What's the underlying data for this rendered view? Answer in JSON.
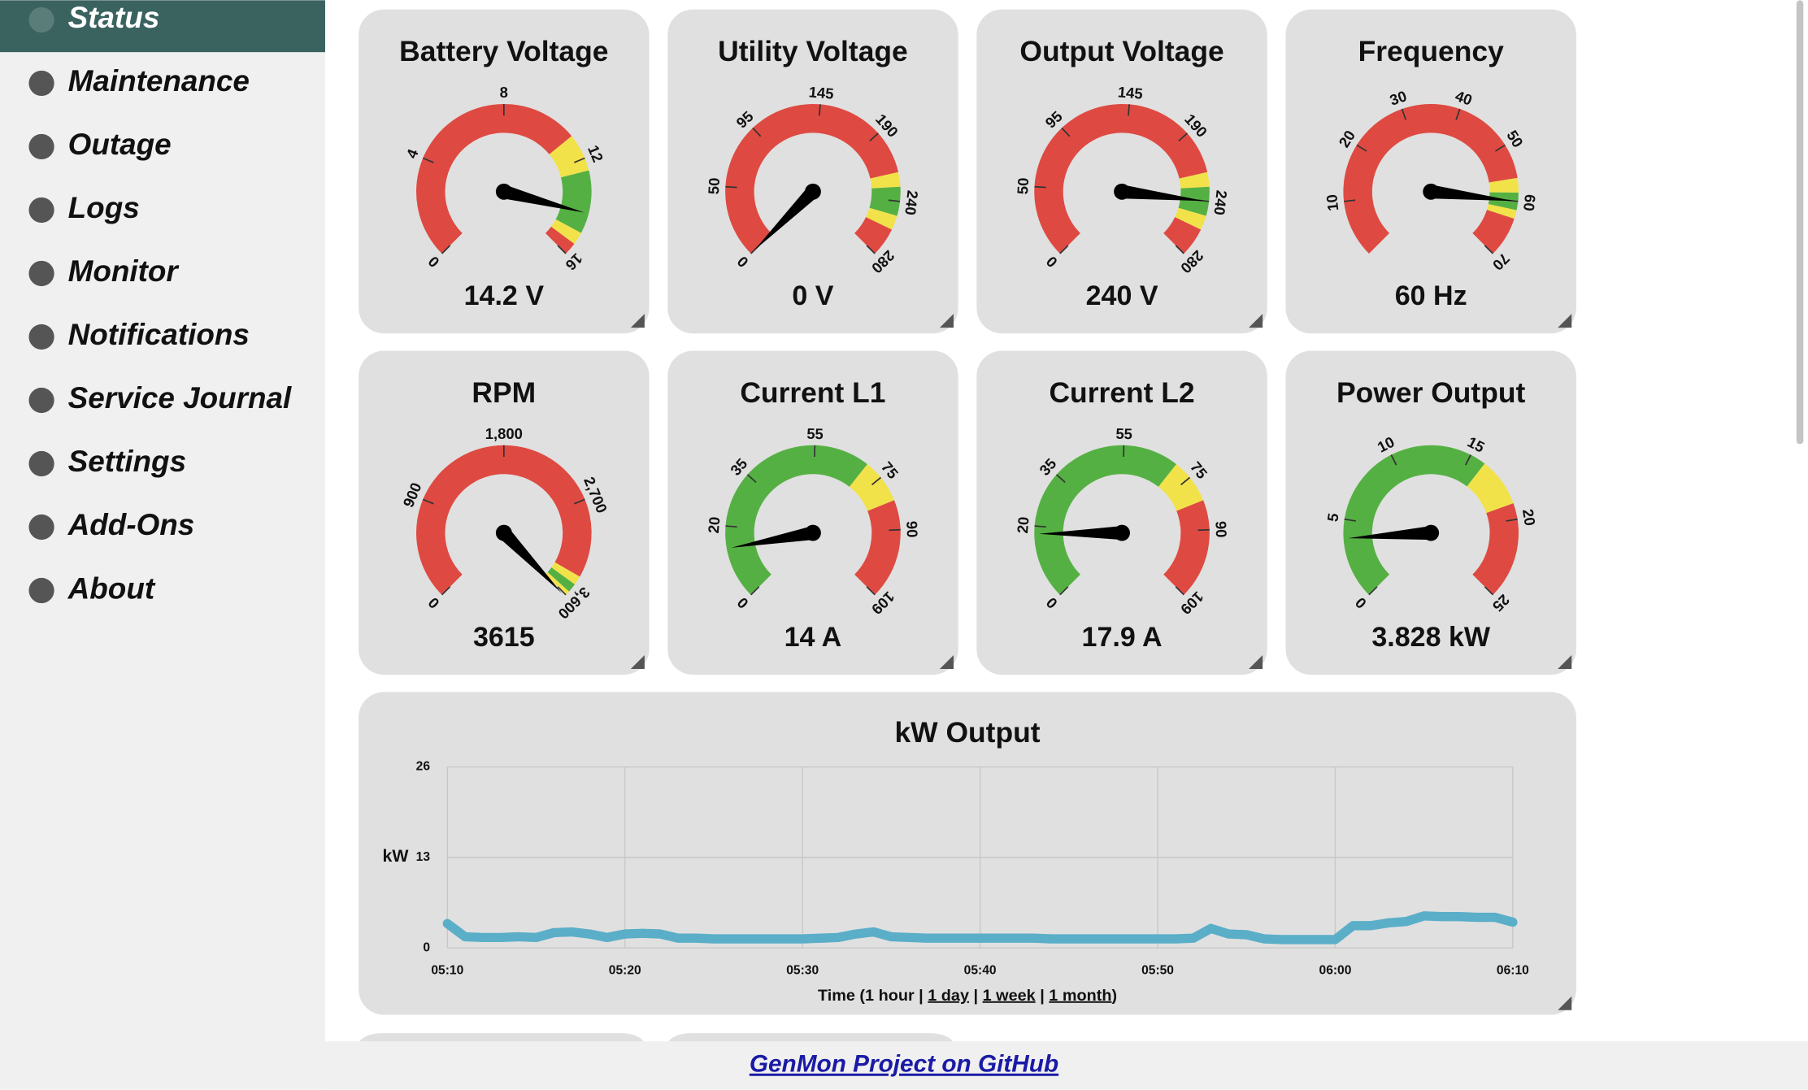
{
  "nav": {
    "items": [
      "Status",
      "Maintenance",
      "Outage",
      "Logs",
      "Monitor",
      "Notifications",
      "Service Journal",
      "Settings",
      "Add-Ons",
      "About"
    ]
  },
  "gauges": [
    {
      "title": "Battery Voltage",
      "min": 0,
      "max": 16,
      "value": 14.2,
      "value_label": "14.2 V",
      "ticks": [
        0,
        4,
        8,
        12,
        16
      ],
      "bands": [
        {
          "from": 0,
          "to": 11,
          "color": "#de4a42"
        },
        {
          "from": 11,
          "to": 12.5,
          "color": "#f2e24a"
        },
        {
          "from": 12.5,
          "to": 15,
          "color": "#55b043"
        },
        {
          "from": 15,
          "to": 15.5,
          "color": "#f2e24a"
        },
        {
          "from": 15.5,
          "to": 16,
          "color": "#de4a42"
        }
      ]
    },
    {
      "title": "Utility Voltage",
      "min": 0,
      "max": 280,
      "value": 0,
      "value_label": "0 V",
      "ticks": [
        0,
        50,
        95,
        145,
        190,
        240,
        280
      ],
      "bands": [
        {
          "from": 0,
          "to": 220,
          "color": "#de4a42"
        },
        {
          "from": 220,
          "to": 230,
          "color": "#f2e24a"
        },
        {
          "from": 230,
          "to": 250,
          "color": "#55b043"
        },
        {
          "from": 250,
          "to": 260,
          "color": "#f2e24a"
        },
        {
          "from": 260,
          "to": 280,
          "color": "#de4a42"
        }
      ]
    },
    {
      "title": "Output Voltage",
      "min": 0,
      "max": 280,
      "value": 240,
      "value_label": "240 V",
      "ticks": [
        0,
        50,
        95,
        145,
        190,
        240,
        280
      ],
      "bands": [
        {
          "from": 0,
          "to": 220,
          "color": "#de4a42"
        },
        {
          "from": 220,
          "to": 230,
          "color": "#f2e24a"
        },
        {
          "from": 230,
          "to": 250,
          "color": "#55b043"
        },
        {
          "from": 250,
          "to": 260,
          "color": "#f2e24a"
        },
        {
          "from": 260,
          "to": 280,
          "color": "#de4a42"
        }
      ]
    },
    {
      "title": "Frequency",
      "min": 0,
      "max": 70,
      "value": 60,
      "value_label": "60 Hz",
      "ticks": [
        10,
        20,
        30,
        40,
        50,
        60,
        70
      ],
      "bands": [
        {
          "from": 0,
          "to": 56,
          "color": "#de4a42"
        },
        {
          "from": 56,
          "to": 58.5,
          "color": "#f2e24a"
        },
        {
          "from": 58.5,
          "to": 61.5,
          "color": "#55b043"
        },
        {
          "from": 61.5,
          "to": 63,
          "color": "#f2e24a"
        },
        {
          "from": 63,
          "to": 70,
          "color": "#de4a42"
        }
      ]
    },
    {
      "title": "RPM",
      "min": 0,
      "max": 3600,
      "value": 3615,
      "value_label": "3615",
      "ticks": [
        0,
        900,
        {
          "value": 1800,
          "label": "1,800"
        },
        {
          "value": 2700,
          "label": "2,700"
        },
        {
          "value": 3600,
          "label": "3,600"
        }
      ],
      "bands": [
        {
          "from": 0,
          "to": 3400,
          "color": "#de4a42"
        },
        {
          "from": 3400,
          "to": 3480,
          "color": "#f2e24a"
        },
        {
          "from": 3480,
          "to": 3560,
          "color": "#55b043"
        },
        {
          "from": 3560,
          "to": 3600,
          "color": "#f2e24a"
        }
      ]
    },
    {
      "title": "Current L1",
      "min": 0,
      "max": 109,
      "value": 14,
      "value_label": "14 A",
      "ticks": [
        0,
        20,
        35,
        55,
        75,
        90,
        109
      ],
      "bands": [
        {
          "from": 0,
          "to": 70,
          "color": "#55b043"
        },
        {
          "from": 70,
          "to": 82,
          "color": "#f2e24a"
        },
        {
          "from": 82,
          "to": 109,
          "color": "#de4a42"
        }
      ]
    },
    {
      "title": "Current L2",
      "min": 0,
      "max": 109,
      "value": 17.9,
      "value_label": "17.9 A",
      "ticks": [
        0,
        20,
        35,
        55,
        75,
        90,
        109
      ],
      "bands": [
        {
          "from": 0,
          "to": 70,
          "color": "#55b043"
        },
        {
          "from": 70,
          "to": 82,
          "color": "#f2e24a"
        },
        {
          "from": 82,
          "to": 109,
          "color": "#de4a42"
        }
      ]
    },
    {
      "title": "Power Output",
      "min": 0,
      "max": 25,
      "value": 3.828,
      "value_label": "3.828 kW",
      "ticks": [
        0,
        5,
        10,
        15,
        20,
        25
      ],
      "bands": [
        {
          "from": 0,
          "to": 16,
          "color": "#55b043"
        },
        {
          "from": 16,
          "to": 19,
          "color": "#f2e24a"
        },
        {
          "from": 19,
          "to": 25,
          "color": "#de4a42"
        }
      ]
    }
  ],
  "chart_data": {
    "type": "line",
    "title": "kW Output",
    "ylabel": "kW",
    "ylim": [
      0,
      26
    ],
    "yticks": [
      0,
      13,
      26
    ],
    "xlim": [
      0,
      60
    ],
    "xticks": [
      {
        "value": 0,
        "label": "05:10"
      },
      {
        "value": 10,
        "label": "05:20"
      },
      {
        "value": 20,
        "label": "05:30"
      },
      {
        "value": 30,
        "label": "05:40"
      },
      {
        "value": 40,
        "label": "05:50"
      },
      {
        "value": 50,
        "label": "06:00"
      },
      {
        "value": 60,
        "label": "06:10"
      }
    ],
    "grid": true,
    "series": [
      {
        "name": "kW",
        "color": "#5aaec8",
        "values": [
          3.5,
          1.6,
          1.5,
          1.5,
          1.6,
          1.5,
          2.2,
          2.3,
          2.0,
          1.5,
          2.0,
          2.1,
          2.0,
          1.4,
          1.4,
          1.3,
          1.3,
          1.3,
          1.3,
          1.3,
          1.3,
          1.4,
          1.5,
          2.0,
          2.3,
          1.6,
          1.5,
          1.4,
          1.4,
          1.4,
          1.4,
          1.4,
          1.4,
          1.4,
          1.3,
          1.3,
          1.3,
          1.3,
          1.3,
          1.3,
          1.3,
          1.3,
          1.4,
          2.8,
          2.0,
          1.9,
          1.3,
          1.2,
          1.2,
          1.2,
          1.2,
          3.2,
          3.2,
          3.6,
          3.8,
          4.6,
          4.5,
          4.5,
          4.4,
          4.4,
          3.7
        ]
      }
    ],
    "caption": {
      "prefix": "Time (1 hour | ",
      "links": [
        "1 day",
        "1 week",
        "1 month"
      ],
      "separator": " | ",
      "suffix": ")"
    }
  },
  "footer": {
    "link": "GenMon Project on GitHub"
  }
}
